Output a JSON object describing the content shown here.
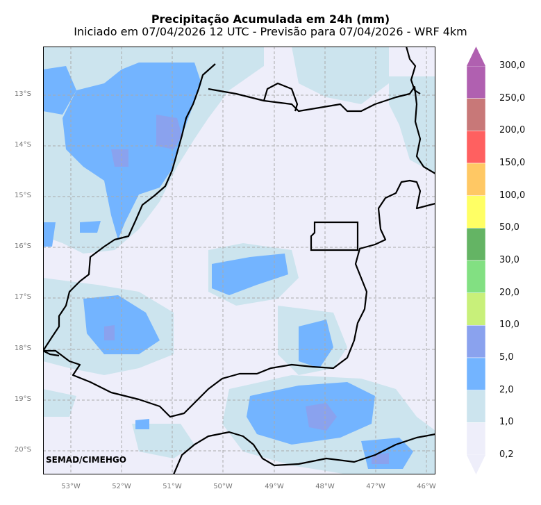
{
  "title": "Precipitação Acumulada em 24h (mm)",
  "subtitle": "Iniciado em 07/04/2026 12 UTC - Previsão para 07/04/2026 - WRF 4km",
  "credit": "SEMAD/CIMEHGO",
  "lat_labels": [
    "13°S",
    "14°S",
    "15°S",
    "16°S",
    "17°S",
    "18°S",
    "19°S",
    "20°S"
  ],
  "lon_labels": [
    "53°W",
    "52°W",
    "51°W",
    "50°W",
    "49°W",
    "48°W",
    "47°W",
    "46°W"
  ],
  "colorbar": {
    "labels": [
      "300,0",
      "250,0",
      "200,0",
      "150,0",
      "100,0",
      "50,0",
      "30,0",
      "20,0",
      "10,0",
      "5,0",
      "2,0",
      "1,0",
      "0,2"
    ],
    "colors": [
      "#b060b0",
      "#c87878",
      "#ff6060",
      "#ffc864",
      "#ffff64",
      "#64b464",
      "#82e082",
      "#c8f07a",
      "#8aa2ee",
      "#73b4ff",
      "#cce4ee",
      "#eeeefa"
    ],
    "extend_top_color": "#b060b0",
    "extend_bottom_color": "#eeeefa"
  },
  "colors": {
    "background": "#eeeefa",
    "light_blue": "#cce4ee",
    "blue": "#73b4ff",
    "dark_blue": "#8aa2ee",
    "grid": "#aaaaaa",
    "border": "#000000"
  }
}
